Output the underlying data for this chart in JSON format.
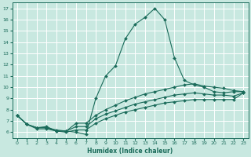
{
  "xlabel": "Humidex (Indice chaleur)",
  "bg_color": "#c8e8e0",
  "grid_color": "#ffffff",
  "line_color": "#1a6b5a",
  "xlim": [
    -0.5,
    23.5
  ],
  "ylim": [
    5.5,
    17.5
  ],
  "xticks": [
    0,
    1,
    2,
    3,
    4,
    5,
    6,
    7,
    8,
    9,
    10,
    11,
    12,
    13,
    14,
    15,
    16,
    17,
    18,
    19,
    20,
    21,
    22,
    23
  ],
  "yticks": [
    6,
    7,
    8,
    9,
    10,
    11,
    12,
    13,
    14,
    15,
    16,
    17
  ],
  "lines": [
    {
      "x": [
        0,
        1,
        2,
        3,
        4,
        5,
        6,
        7,
        8,
        9,
        10,
        11,
        12,
        13,
        14,
        15,
        16,
        17,
        18,
        19,
        20,
        21,
        22,
        23
      ],
      "y": [
        7.5,
        6.7,
        6.4,
        6.5,
        6.1,
        6.1,
        6.0,
        5.8,
        9.0,
        11.0,
        11.9,
        14.3,
        15.6,
        16.2,
        17.0,
        16.0,
        12.6,
        10.6,
        10.2,
        10.0,
        9.6,
        9.5,
        9.6,
        9.6
      ]
    },
    {
      "x": [
        0,
        1,
        2,
        3,
        4,
        5,
        6,
        7,
        8,
        9,
        10,
        11,
        12,
        13,
        14,
        15,
        16,
        17,
        18,
        19,
        20,
        21,
        22,
        23
      ],
      "y": [
        7.5,
        6.7,
        6.4,
        6.4,
        6.2,
        6.1,
        6.8,
        6.8,
        7.5,
        8.0,
        8.4,
        8.8,
        9.1,
        9.4,
        9.6,
        9.8,
        10.0,
        10.2,
        10.3,
        10.1,
        10.0,
        9.9,
        9.7,
        9.6
      ]
    },
    {
      "x": [
        0,
        1,
        2,
        3,
        4,
        5,
        6,
        7,
        8,
        9,
        10,
        11,
        12,
        13,
        14,
        15,
        16,
        17,
        18,
        19,
        20,
        21,
        22,
        23
      ],
      "y": [
        7.5,
        6.7,
        6.4,
        6.4,
        6.1,
        6.1,
        6.5,
        6.5,
        7.2,
        7.6,
        7.9,
        8.2,
        8.5,
        8.7,
        8.9,
        9.1,
        9.3,
        9.4,
        9.5,
        9.4,
        9.3,
        9.3,
        9.2,
        9.5
      ]
    },
    {
      "x": [
        0,
        1,
        2,
        3,
        4,
        5,
        6,
        7,
        8,
        9,
        10,
        11,
        12,
        13,
        14,
        15,
        16,
        17,
        18,
        19,
        20,
        21,
        22,
        23
      ],
      "y": [
        7.5,
        6.7,
        6.3,
        6.3,
        6.1,
        6.0,
        6.2,
        6.2,
        6.8,
        7.2,
        7.5,
        7.8,
        8.0,
        8.2,
        8.4,
        8.6,
        8.7,
        8.8,
        8.9,
        8.9,
        8.9,
        8.9,
        8.9,
        9.5
      ]
    }
  ]
}
